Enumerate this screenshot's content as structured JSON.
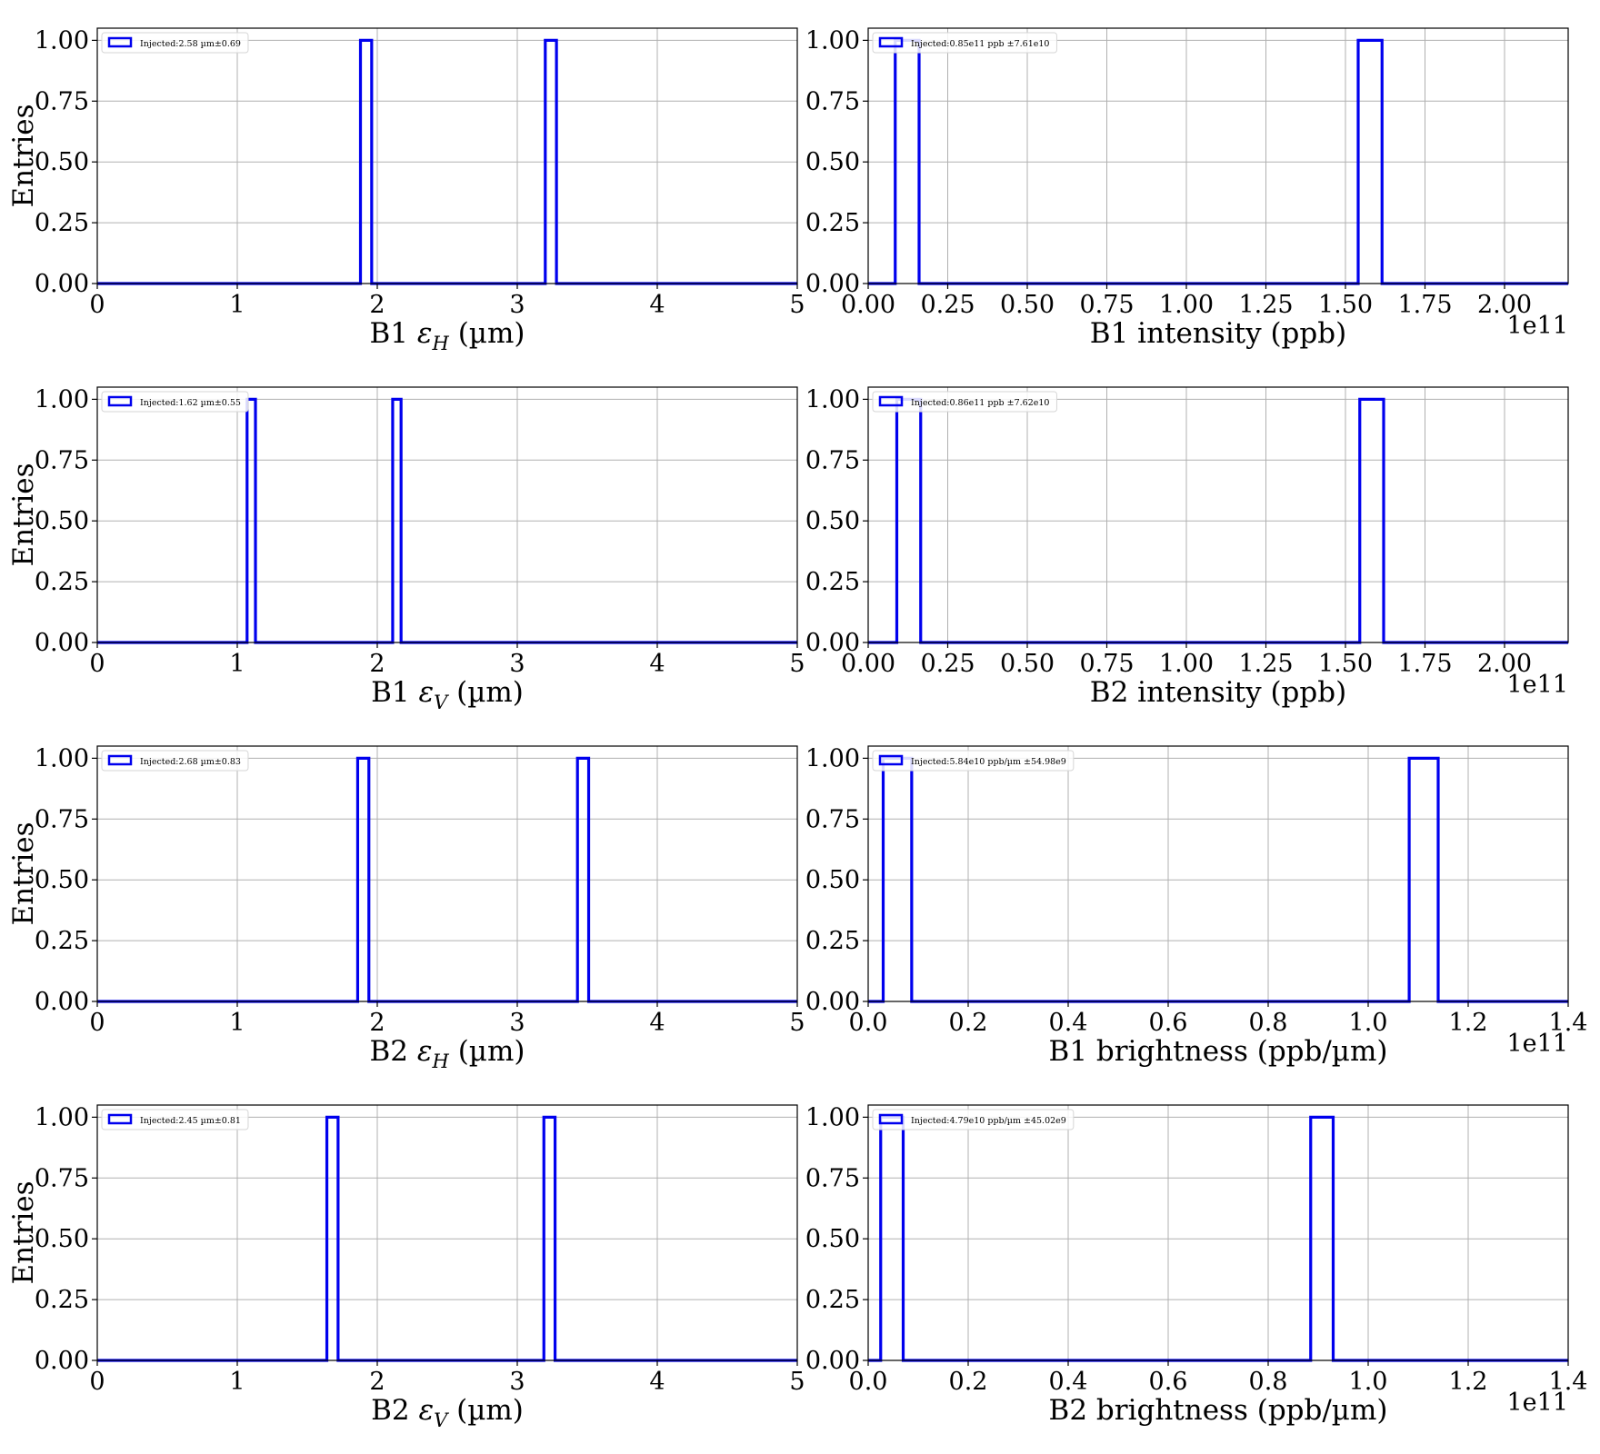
{
  "figure": {
    "colors": {
      "series": "#0000ee",
      "grid": "#b0b0b0",
      "frame": "#000000"
    }
  },
  "chart_data": [
    {
      "type": "histogram",
      "xlabel": "B1 εH (µm)",
      "xlabel_parts": {
        "beam": "B1 ",
        "symbol": "ε",
        "sub": "H",
        "unit": " (µm)"
      },
      "ylabel": "Entries",
      "xlim": [
        0,
        5
      ],
      "ylim": [
        0,
        1.05
      ],
      "xticks": [
        0,
        1,
        2,
        3,
        4,
        5
      ],
      "xtick_labels": [
        "0",
        "1",
        "2",
        "3",
        "4",
        "5"
      ],
      "yticks": [
        0,
        0.25,
        0.5,
        0.75,
        1.0
      ],
      "ytick_labels": [
        "0.00",
        "0.25",
        "0.50",
        "0.75",
        "1.00"
      ],
      "offset_text": "",
      "grid": true,
      "legend_position": "upper-left",
      "legend": "Injected:2.58 µm±0.69",
      "bars": [
        {
          "x0": 1.88,
          "x1": 1.96,
          "count": 1
        },
        {
          "x0": 3.2,
          "x1": 3.28,
          "count": 1
        }
      ]
    },
    {
      "type": "histogram",
      "xlabel": "B1 intensity (ppb)",
      "ylabel": "",
      "xlim": [
        0,
        2.2
      ],
      "ylim": [
        0,
        1.05
      ],
      "xticks": [
        0,
        0.25,
        0.5,
        0.75,
        1.0,
        1.25,
        1.5,
        1.75,
        2.0
      ],
      "xtick_labels": [
        "0.00",
        "0.25",
        "0.50",
        "0.75",
        "1.00",
        "1.25",
        "1.50",
        "1.75",
        "2.00"
      ],
      "yticks": [
        0,
        0.25,
        0.5,
        0.75,
        1.0
      ],
      "ytick_labels": [
        "0.00",
        "0.25",
        "0.50",
        "0.75",
        "1.00"
      ],
      "offset_text": "1e11",
      "grid": true,
      "legend_position": "upper-left",
      "legend": "Injected:0.85e11 ppb ±7.61e10",
      "bars": [
        {
          "x0": 0.085,
          "x1": 0.16,
          "count": 1
        },
        {
          "x0": 1.54,
          "x1": 1.615,
          "count": 1
        }
      ]
    },
    {
      "type": "histogram",
      "xlabel": "B1 εV (µm)",
      "xlabel_parts": {
        "beam": "B1 ",
        "symbol": "ε",
        "sub": "V",
        "unit": " (µm)"
      },
      "ylabel": "Entries",
      "xlim": [
        0,
        5
      ],
      "ylim": [
        0,
        1.05
      ],
      "xticks": [
        0,
        1,
        2,
        3,
        4,
        5
      ],
      "xtick_labels": [
        "0",
        "1",
        "2",
        "3",
        "4",
        "5"
      ],
      "yticks": [
        0,
        0.25,
        0.5,
        0.75,
        1.0
      ],
      "ytick_labels": [
        "0.00",
        "0.25",
        "0.50",
        "0.75",
        "1.00"
      ],
      "offset_text": "",
      "grid": true,
      "legend_position": "upper-left",
      "legend": "Injected:1.62 µm±0.55",
      "bars": [
        {
          "x0": 1.07,
          "x1": 1.13,
          "count": 1
        },
        {
          "x0": 2.11,
          "x1": 2.17,
          "count": 1
        }
      ]
    },
    {
      "type": "histogram",
      "xlabel": "B2 intensity (ppb)",
      "ylabel": "",
      "xlim": [
        0,
        2.2
      ],
      "ylim": [
        0,
        1.05
      ],
      "xticks": [
        0,
        0.25,
        0.5,
        0.75,
        1.0,
        1.25,
        1.5,
        1.75,
        2.0
      ],
      "xtick_labels": [
        "0.00",
        "0.25",
        "0.50",
        "0.75",
        "1.00",
        "1.25",
        "1.50",
        "1.75",
        "2.00"
      ],
      "yticks": [
        0,
        0.25,
        0.5,
        0.75,
        1.0
      ],
      "ytick_labels": [
        "0.00",
        "0.25",
        "0.50",
        "0.75",
        "1.00"
      ],
      "offset_text": "1e11",
      "grid": true,
      "legend_position": "upper-left",
      "legend": "Injected:0.86e11 ppb ±7.62e10",
      "bars": [
        {
          "x0": 0.09,
          "x1": 0.165,
          "count": 1
        },
        {
          "x0": 1.545,
          "x1": 1.62,
          "count": 1
        }
      ]
    },
    {
      "type": "histogram",
      "xlabel": "B2 εH (µm)",
      "xlabel_parts": {
        "beam": "B2 ",
        "symbol": "ε",
        "sub": "H",
        "unit": " (µm)"
      },
      "ylabel": "Entries",
      "xlim": [
        0,
        5
      ],
      "ylim": [
        0,
        1.05
      ],
      "xticks": [
        0,
        1,
        2,
        3,
        4,
        5
      ],
      "xtick_labels": [
        "0",
        "1",
        "2",
        "3",
        "4",
        "5"
      ],
      "yticks": [
        0,
        0.25,
        0.5,
        0.75,
        1.0
      ],
      "ytick_labels": [
        "0.00",
        "0.25",
        "0.50",
        "0.75",
        "1.00"
      ],
      "offset_text": "",
      "grid": true,
      "legend_position": "upper-left",
      "legend": "Injected:2.68 µm±0.83",
      "bars": [
        {
          "x0": 1.86,
          "x1": 1.94,
          "count": 1
        },
        {
          "x0": 3.43,
          "x1": 3.51,
          "count": 1
        }
      ]
    },
    {
      "type": "histogram",
      "xlabel": "B1 brightness (ppb/µm)",
      "ylabel": "",
      "xlim": [
        0,
        1.4
      ],
      "ylim": [
        0,
        1.05
      ],
      "xticks": [
        0,
        0.2,
        0.4,
        0.6,
        0.8,
        1.0,
        1.2,
        1.4
      ],
      "xtick_labels": [
        "0.0",
        "0.2",
        "0.4",
        "0.6",
        "0.8",
        "1.0",
        "1.2",
        "1.4"
      ],
      "yticks": [
        0,
        0.25,
        0.5,
        0.75,
        1.0
      ],
      "ytick_labels": [
        "0.00",
        "0.25",
        "0.50",
        "0.75",
        "1.00"
      ],
      "offset_text": "1e11",
      "grid": true,
      "legend_position": "upper-left",
      "legend": "Injected:5.84e10 ppb/µm ±54.98e9",
      "bars": [
        {
          "x0": 0.03,
          "x1": 0.087,
          "count": 1
        },
        {
          "x0": 1.082,
          "x1": 1.14,
          "count": 1
        }
      ]
    },
    {
      "type": "histogram",
      "xlabel": "B2 εV (µm)",
      "xlabel_parts": {
        "beam": "B2 ",
        "symbol": "ε",
        "sub": "V",
        "unit": " (µm)"
      },
      "ylabel": "Entries",
      "xlim": [
        0,
        5
      ],
      "ylim": [
        0,
        1.05
      ],
      "xticks": [
        0,
        1,
        2,
        3,
        4,
        5
      ],
      "xtick_labels": [
        "0",
        "1",
        "2",
        "3",
        "4",
        "5"
      ],
      "yticks": [
        0,
        0.25,
        0.5,
        0.75,
        1.0
      ],
      "ytick_labels": [
        "0.00",
        "0.25",
        "0.50",
        "0.75",
        "1.00"
      ],
      "offset_text": "",
      "grid": true,
      "legend_position": "upper-left",
      "legend": "Injected:2.45 µm±0.81",
      "bars": [
        {
          "x0": 1.64,
          "x1": 1.72,
          "count": 1
        },
        {
          "x0": 3.19,
          "x1": 3.27,
          "count": 1
        }
      ]
    },
    {
      "type": "histogram",
      "xlabel": "B2 brightness (ppb/µm)",
      "ylabel": "",
      "xlim": [
        0,
        1.4
      ],
      "ylim": [
        0,
        1.05
      ],
      "xticks": [
        0,
        0.2,
        0.4,
        0.6,
        0.8,
        1.0,
        1.2,
        1.4
      ],
      "xtick_labels": [
        "0.0",
        "0.2",
        "0.4",
        "0.6",
        "0.8",
        "1.0",
        "1.2",
        "1.4"
      ],
      "yticks": [
        0,
        0.25,
        0.5,
        0.75,
        1.0
      ],
      "ytick_labels": [
        "0.00",
        "0.25",
        "0.50",
        "0.75",
        "1.00"
      ],
      "offset_text": "1e11",
      "grid": true,
      "legend_position": "upper-left",
      "legend": "Injected:4.79e10 ppb/µm ±45.02e9",
      "bars": [
        {
          "x0": 0.025,
          "x1": 0.07,
          "count": 1
        },
        {
          "x0": 0.885,
          "x1": 0.93,
          "count": 1
        }
      ]
    }
  ]
}
